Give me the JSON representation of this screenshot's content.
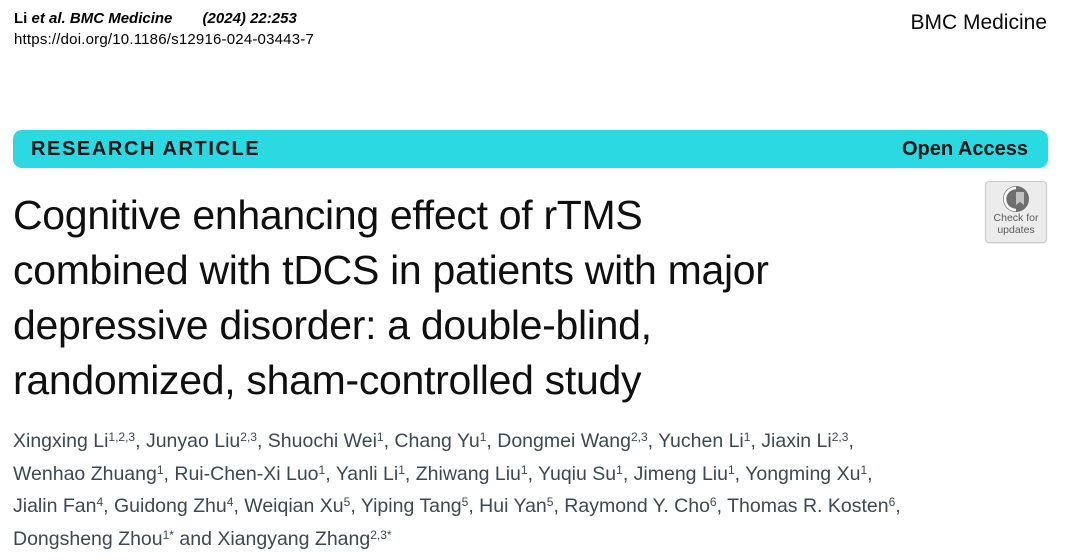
{
  "header": {
    "citation": {
      "author_short": "Li",
      "et_al_journal": "et al. BMC Medicine",
      "issue": "(2024) 22:253",
      "doi": "https://doi.org/10.1186/s12916-024-03443-7"
    },
    "journal": "BMC Medicine"
  },
  "banner": {
    "kicker": "RESEARCH ARTICLE",
    "access_label": "Open Access",
    "color": "#2bd9e2"
  },
  "title": {
    "lines": [
      "Cognitive enhancing effect of rTMS",
      "combined with tDCS in patients with major",
      "depressive disorder: a double-blind,",
      "randomized, sham-controlled study"
    ]
  },
  "badge": {
    "line1": "Check for",
    "line2": "updates"
  },
  "authors": {
    "color": "#3d4852",
    "lines": [
      [
        {
          "text": "Xingxing Li"
        },
        {
          "sup": "1,2,3"
        },
        {
          "text": ", Junyao Liu"
        },
        {
          "sup": "2,3"
        },
        {
          "text": ", Shuochi Wei"
        },
        {
          "sup": "1"
        },
        {
          "text": ", Chang Yu"
        },
        {
          "sup": "1"
        },
        {
          "text": ", Dongmei Wang"
        },
        {
          "sup": "2,3"
        },
        {
          "text": ", Yuchen Li"
        },
        {
          "sup": "1"
        },
        {
          "text": ", Jiaxin Li"
        },
        {
          "sup": "2,3"
        },
        {
          "text": ","
        }
      ],
      [
        {
          "text": "Wenhao Zhuang"
        },
        {
          "sup": "1"
        },
        {
          "text": ", Rui-Chen-Xi Luo"
        },
        {
          "sup": "1"
        },
        {
          "text": ", Yanli Li"
        },
        {
          "sup": "1"
        },
        {
          "text": ", Zhiwang Liu"
        },
        {
          "sup": "1"
        },
        {
          "text": ", Yuqiu Su"
        },
        {
          "sup": "1"
        },
        {
          "text": ", Jimeng Liu"
        },
        {
          "sup": "1"
        },
        {
          "text": ", Yongming Xu"
        },
        {
          "sup": "1"
        },
        {
          "text": ","
        }
      ],
      [
        {
          "text": "Jialin Fan"
        },
        {
          "sup": "4"
        },
        {
          "text": ", Guidong Zhu"
        },
        {
          "sup": "4"
        },
        {
          "text": ", Weiqian Xu"
        },
        {
          "sup": "5"
        },
        {
          "text": ", Yiping Tang"
        },
        {
          "sup": "5"
        },
        {
          "text": ", Hui Yan"
        },
        {
          "sup": "5"
        },
        {
          "text": ", Raymond Y. Cho"
        },
        {
          "sup": "6"
        },
        {
          "text": ", Thomas R. Kosten"
        },
        {
          "sup": "6"
        },
        {
          "text": ","
        }
      ],
      [
        {
          "text": "Dongsheng Zhou"
        },
        {
          "sup": "1*"
        },
        {
          "text": " and Xiangyang Zhang"
        },
        {
          "sup": "2,3*"
        }
      ]
    ]
  }
}
